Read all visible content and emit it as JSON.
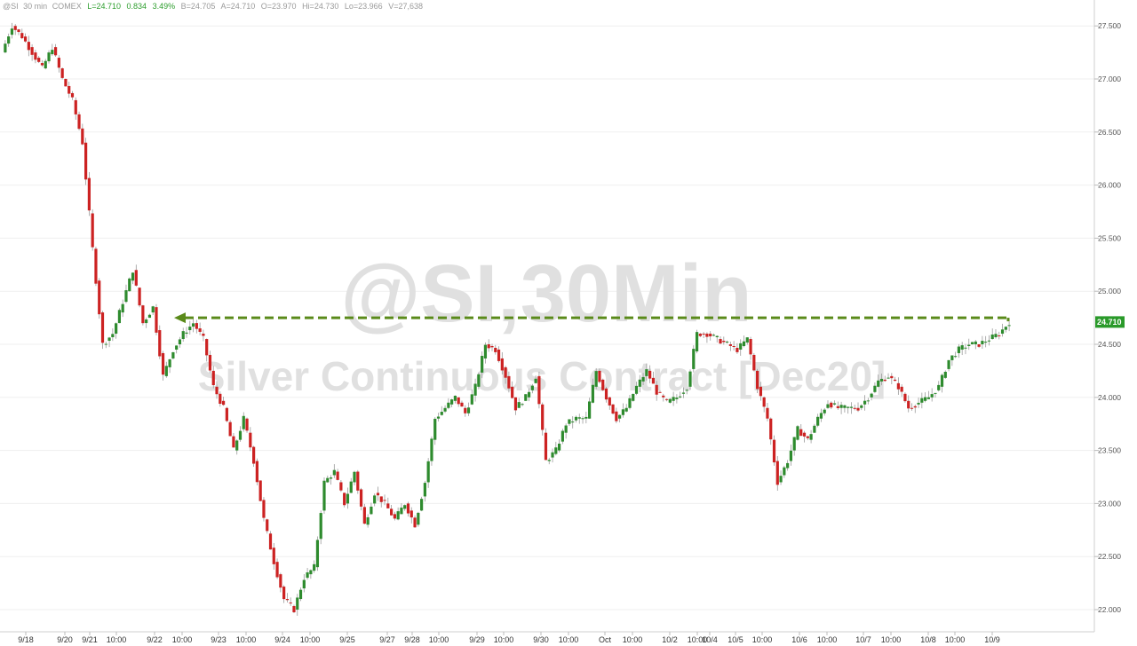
{
  "header": {
    "symbol": "@SI",
    "interval": "30 min",
    "exchange": "COMEX",
    "last": "L=24.710",
    "change": "0.834",
    "change_pct": "3.49%",
    "bid": "B=24.705",
    "ask": "A=24.710",
    "open": "O=23.970",
    "high": "Hi=24.730",
    "low": "Lo=23.966",
    "volume": "V=27,638"
  },
  "watermark": {
    "line1": "@SI,30Min",
    "line2": "Silver Continuous Contract [Dec20]"
  },
  "last_price_label": "24.710",
  "colors": {
    "up": "#2e8b2e",
    "down": "#cc2222",
    "header_green": "#2e9e2e",
    "annotation": "#5a8a1a",
    "last_label_bg": "#2a9a2a"
  },
  "chart_data": {
    "type": "line",
    "title": "",
    "xlabel": "",
    "ylabel": "",
    "ylim": [
      21.9,
      27.7
    ],
    "y_ticks": [
      "22.000",
      "22.500",
      "23.000",
      "23.500",
      "24.000",
      "24.500",
      "25.000",
      "25.500",
      "26.000",
      "26.500",
      "27.000",
      "27.500"
    ],
    "x_tick_labels": [
      "9/18",
      "9/20",
      "9/21",
      "10:00",
      "9/22",
      "10:00",
      "9/23",
      "10:00",
      "9/24",
      "10:00",
      "9/25",
      "9/27",
      "9/28",
      "10:00",
      "9/29",
      "10:00",
      "9/30",
      "10:00",
      "Oct",
      "10:00",
      "10/2",
      "10:00",
      "10/4",
      "10/5",
      "10:00",
      "10/6",
      "10:00",
      "10/7",
      "10:00",
      "10/8",
      "10:00",
      "10/9"
    ],
    "annotation": {
      "type": "horizontal-arrow",
      "price": 24.75,
      "from_label": "9/22",
      "to": "latest"
    },
    "series": [
      {
        "x_index": [
          0,
          3,
          6,
          9,
          12,
          15,
          18,
          21,
          24,
          27,
          30,
          33,
          36,
          39,
          42,
          45,
          48,
          51,
          54,
          57,
          60,
          63,
          66,
          69,
          72,
          75,
          78,
          81,
          84,
          87,
          90,
          93,
          96,
          99,
          102,
          105,
          108,
          111,
          114,
          117,
          120,
          123,
          126,
          129,
          132,
          135,
          138,
          141,
          144,
          147,
          150,
          153,
          156,
          159,
          162,
          165,
          168,
          171,
          174,
          177,
          180,
          183,
          186,
          189,
          192,
          195,
          198,
          201,
          204,
          207,
          210,
          213,
          216,
          219,
          222,
          225,
          228,
          231,
          234,
          237,
          240,
          243,
          246,
          249,
          252,
          255,
          258,
          261,
          264,
          267,
          270,
          273,
          276,
          279,
          282,
          285,
          288,
          291,
          294,
          297,
          300
        ],
        "values": [
          27.25,
          27.5,
          27.4,
          27.25,
          27.1,
          27.3,
          27.0,
          26.8,
          26.4,
          25.4,
          24.5,
          24.6,
          24.9,
          25.2,
          24.7,
          24.85,
          24.2,
          24.45,
          24.6,
          24.7,
          24.55,
          24.1,
          23.9,
          23.5,
          23.8,
          23.4,
          22.85,
          22.45,
          22.1,
          22.0,
          22.3,
          22.4,
          23.2,
          23.3,
          23.0,
          23.3,
          22.8,
          23.1,
          23.0,
          22.85,
          23.0,
          22.8,
          23.2,
          23.8,
          23.9,
          24.0,
          23.85,
          24.1,
          24.5,
          24.45,
          24.2,
          23.9,
          24.0,
          24.2,
          23.4,
          23.5,
          23.75,
          23.8,
          23.8,
          24.25,
          24.0,
          23.8,
          23.9,
          24.1,
          24.25,
          24.05,
          23.95,
          24.0,
          24.1,
          24.6,
          24.6,
          24.55,
          24.5,
          24.45,
          24.55,
          24.1,
          23.8,
          23.2,
          23.4,
          23.7,
          23.6,
          23.8,
          23.95,
          23.9,
          23.9,
          23.9,
          24.0,
          24.15,
          24.2,
          24.1,
          23.9,
          23.95,
          24.0,
          24.1,
          24.35,
          24.45,
          24.5,
          24.5,
          24.55,
          24.6,
          24.71
        ]
      }
    ]
  }
}
